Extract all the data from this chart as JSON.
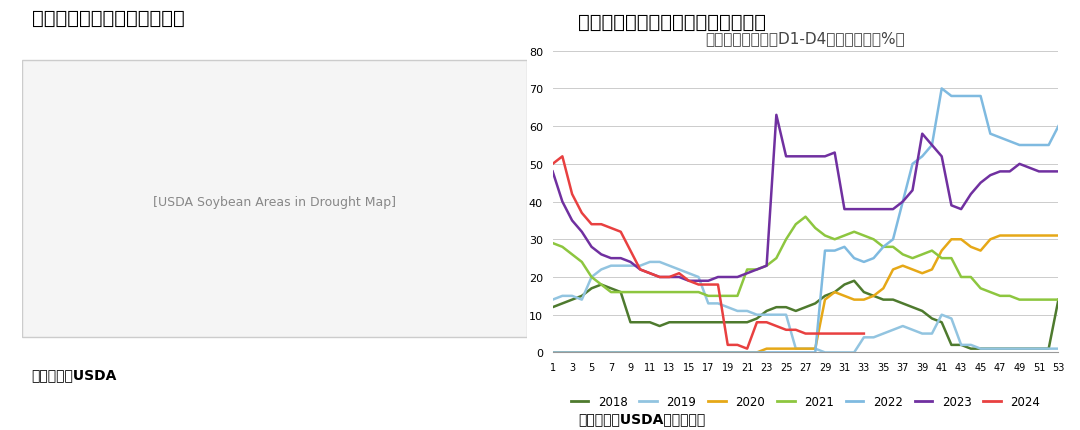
{
  "title_left": "图：美豆主产区干旱面积占比",
  "title_right": "图：干旱面积占比位于历史同期低位",
  "subtitle_right": "美豆主产区干旱（D1-D4）占比情况（%）",
  "source_left": "图表来源：USDA",
  "source_right": "数据来源：USDA，国富期货",
  "xlabel": "",
  "ylim": [
    0,
    80
  ],
  "yticks": [
    0,
    10,
    20,
    30,
    40,
    50,
    60,
    70,
    80
  ],
  "xtick_labels": [
    "1",
    "3",
    "5",
    "7",
    "9",
    "11",
    "13",
    "15",
    "17",
    "19",
    "21",
    "23",
    "25",
    "27",
    "29",
    "31",
    "33",
    "35",
    "37",
    "39",
    "41",
    "43",
    "45",
    "47",
    "49",
    "51",
    "53"
  ],
  "xtick_values": [
    1,
    3,
    5,
    7,
    9,
    11,
    13,
    15,
    17,
    19,
    21,
    23,
    25,
    27,
    29,
    31,
    33,
    35,
    37,
    39,
    41,
    43,
    45,
    47,
    49,
    51,
    53
  ],
  "series": {
    "2018": {
      "color": "#4e7a2e",
      "weeks": [
        1,
        2,
        3,
        4,
        5,
        6,
        7,
        8,
        9,
        10,
        11,
        12,
        13,
        14,
        15,
        16,
        17,
        18,
        19,
        20,
        21,
        22,
        23,
        24,
        25,
        26,
        27,
        28,
        29,
        30,
        31,
        32,
        33,
        34,
        35,
        36,
        37,
        38,
        39,
        40,
        41,
        42,
        43,
        44,
        45,
        46,
        47,
        48,
        49,
        50,
        51,
        52,
        53
      ],
      "values": [
        12,
        13,
        14,
        15,
        17,
        18,
        17,
        16,
        8,
        8,
        8,
        7,
        8,
        8,
        8,
        8,
        8,
        8,
        8,
        8,
        8,
        9,
        11,
        12,
        12,
        11,
        12,
        13,
        15,
        16,
        18,
        19,
        16,
        15,
        14,
        14,
        13,
        12,
        11,
        9,
        8,
        2,
        2,
        1,
        1,
        1,
        1,
        1,
        1,
        1,
        1,
        1,
        14
      ]
    },
    "2019": {
      "color": "#92c4e0",
      "weeks": [
        1,
        2,
        3,
        4,
        5,
        6,
        7,
        8,
        9,
        10,
        11,
        12,
        13,
        14,
        15,
        16,
        17,
        18,
        19,
        20,
        21,
        22,
        23,
        24,
        25,
        26,
        27,
        28,
        29,
        30,
        31,
        32,
        33,
        34,
        35,
        36,
        37,
        38,
        39,
        40,
        41,
        42,
        43,
        44,
        45,
        46,
        47,
        48,
        49,
        50,
        51,
        52,
        53
      ],
      "values": [
        14,
        15,
        15,
        14,
        20,
        22,
        23,
        23,
        23,
        23,
        24,
        24,
        23,
        22,
        21,
        20,
        13,
        13,
        12,
        11,
        11,
        10,
        10,
        10,
        10,
        1,
        1,
        1,
        0,
        0,
        0,
        0,
        4,
        4,
        5,
        6,
        7,
        6,
        5,
        5,
        10,
        9,
        2,
        2,
        1,
        1,
        1,
        1,
        1,
        1,
        1,
        1,
        1
      ]
    },
    "2020": {
      "color": "#e6a817",
      "weeks": [
        1,
        2,
        3,
        4,
        5,
        6,
        7,
        8,
        9,
        10,
        11,
        12,
        13,
        14,
        15,
        16,
        17,
        18,
        19,
        20,
        21,
        22,
        23,
        24,
        25,
        26,
        27,
        28,
        29,
        30,
        31,
        32,
        33,
        34,
        35,
        36,
        37,
        38,
        39,
        40,
        41,
        42,
        43,
        44,
        45,
        46,
        47,
        48,
        49,
        50,
        51,
        52,
        53
      ],
      "values": [
        0,
        0,
        0,
        0,
        0,
        0,
        0,
        0,
        0,
        0,
        0,
        0,
        0,
        0,
        0,
        0,
        0,
        0,
        0,
        0,
        0,
        0,
        1,
        1,
        1,
        1,
        1,
        1,
        14,
        16,
        15,
        14,
        14,
        15,
        17,
        22,
        23,
        22,
        21,
        22,
        27,
        30,
        30,
        28,
        27,
        30,
        31,
        31,
        31,
        31,
        31,
        31,
        31
      ]
    },
    "2021": {
      "color": "#8dc63f",
      "weeks": [
        1,
        2,
        3,
        4,
        5,
        6,
        7,
        8,
        9,
        10,
        11,
        12,
        13,
        14,
        15,
        16,
        17,
        18,
        19,
        20,
        21,
        22,
        23,
        24,
        25,
        26,
        27,
        28,
        29,
        30,
        31,
        32,
        33,
        34,
        35,
        36,
        37,
        38,
        39,
        40,
        41,
        42,
        43,
        44,
        45,
        46,
        47,
        48,
        49,
        50,
        51,
        52,
        53
      ],
      "values": [
        29,
        28,
        26,
        24,
        20,
        18,
        16,
        16,
        16,
        16,
        16,
        16,
        16,
        16,
        16,
        16,
        15,
        15,
        15,
        15,
        22,
        22,
        23,
        25,
        30,
        34,
        36,
        33,
        31,
        30,
        31,
        32,
        31,
        30,
        28,
        28,
        26,
        25,
        26,
        27,
        25,
        25,
        20,
        20,
        17,
        16,
        15,
        15,
        14,
        14,
        14,
        14,
        14
      ]
    },
    "2022": {
      "color": "#7fbae0",
      "weeks": [
        1,
        2,
        3,
        4,
        5,
        6,
        7,
        8,
        9,
        10,
        11,
        12,
        13,
        14,
        15,
        16,
        17,
        18,
        19,
        20,
        21,
        22,
        23,
        24,
        25,
        26,
        27,
        28,
        29,
        30,
        31,
        32,
        33,
        34,
        35,
        36,
        37,
        38,
        39,
        40,
        41,
        42,
        43,
        44,
        45,
        46,
        47,
        48,
        49,
        50,
        51,
        52,
        53
      ],
      "values": [
        0,
        0,
        0,
        0,
        0,
        0,
        0,
        0,
        0,
        0,
        0,
        0,
        0,
        0,
        0,
        0,
        0,
        0,
        0,
        0,
        0,
        0,
        0,
        0,
        0,
        0,
        0,
        0,
        27,
        27,
        28,
        25,
        24,
        25,
        28,
        30,
        40,
        50,
        52,
        55,
        70,
        68,
        68,
        68,
        68,
        58,
        57,
        56,
        55,
        55,
        55,
        55,
        60
      ]
    },
    "2023": {
      "color": "#7030a0",
      "weeks": [
        1,
        2,
        3,
        4,
        5,
        6,
        7,
        8,
        9,
        10,
        11,
        12,
        13,
        14,
        15,
        16,
        17,
        18,
        19,
        20,
        21,
        22,
        23,
        24,
        25,
        26,
        27,
        28,
        29,
        30,
        31,
        32,
        33,
        34,
        35,
        36,
        37,
        38,
        39,
        40,
        41,
        42,
        43,
        44,
        45,
        46,
        47,
        48,
        49,
        50,
        51,
        52,
        53
      ],
      "values": [
        48,
        40,
        35,
        32,
        28,
        26,
        25,
        25,
        24,
        22,
        21,
        20,
        20,
        20,
        19,
        19,
        19,
        20,
        20,
        20,
        21,
        22,
        23,
        63,
        52,
        52,
        52,
        52,
        52,
        53,
        38,
        38,
        38,
        38,
        38,
        38,
        40,
        43,
        58,
        55,
        52,
        39,
        38,
        42,
        45,
        47,
        48,
        48,
        50,
        49,
        48,
        48,
        48
      ]
    },
    "2024": {
      "color": "#e84040",
      "weeks": [
        1,
        2,
        3,
        4,
        5,
        6,
        7,
        8,
        9,
        10,
        11,
        12,
        13,
        14,
        15,
        16,
        17,
        18,
        19,
        20,
        21,
        22,
        23,
        24,
        25,
        26,
        27,
        28,
        29,
        30,
        31,
        32,
        33
      ],
      "values": [
        50,
        52,
        42,
        37,
        34,
        34,
        33,
        32,
        27,
        22,
        21,
        20,
        20,
        21,
        19,
        18,
        18,
        18,
        2,
        2,
        1,
        8,
        8,
        7,
        6,
        6,
        5,
        5,
        5,
        5,
        5,
        5,
        5
      ]
    }
  },
  "legend_entries": [
    "2018",
    "2019",
    "2020",
    "2021",
    "2022",
    "2023",
    "2024"
  ],
  "background_color": "#ffffff",
  "grid_color": "#cccccc",
  "title_fontsize": 14,
  "subtitle_fontsize": 11,
  "source_fontsize": 10
}
